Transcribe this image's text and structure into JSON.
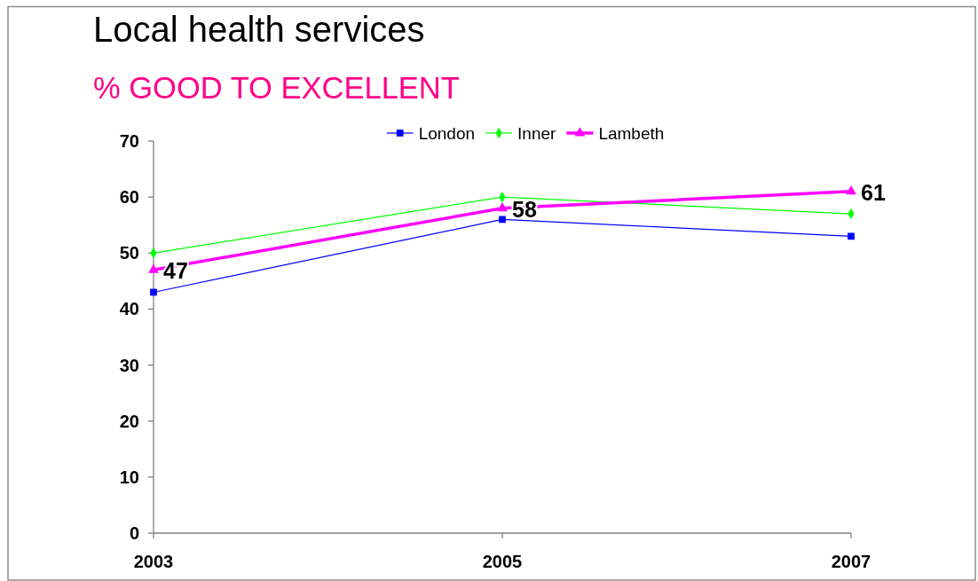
{
  "chart_data": {
    "type": "line",
    "title": "Local health services",
    "subtitle": "% GOOD TO EXCELLENT",
    "categories": [
      "2003",
      "2005",
      "2007"
    ],
    "series": [
      {
        "name": "London",
        "color": "#0000ff",
        "marker": "square",
        "values": [
          43,
          56,
          53
        ]
      },
      {
        "name": "Inner",
        "color": "#00ff00",
        "marker": "diamond",
        "values": [
          50,
          60,
          57
        ]
      },
      {
        "name": "Lambeth",
        "color": "#ff00ff",
        "marker": "triangle",
        "values": [
          47,
          58,
          61
        ],
        "value_labels": [
          "47",
          "58",
          "61"
        ]
      }
    ],
    "ylim": [
      0,
      70
    ],
    "yticks": [
      0,
      10,
      20,
      30,
      40,
      50,
      60,
      70
    ],
    "legend": "top"
  }
}
